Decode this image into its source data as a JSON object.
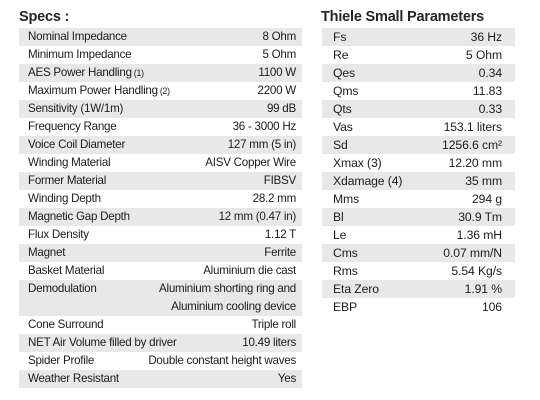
{
  "specs": {
    "heading": "Specs :",
    "rows": [
      {
        "label": "Nominal Impedance",
        "value": "8 Ohm"
      },
      {
        "label": "Minimum Impedance",
        "value": "5 Ohm"
      },
      {
        "label": "AES Power Handling",
        "sup": "(1)",
        "value": "1100 W"
      },
      {
        "label": "Maximum Power Handling",
        "sup": "(2)",
        "value": "2200 W"
      },
      {
        "label": "Sensitivity (1W/1m)",
        "value": "99 dB"
      },
      {
        "label": "Frequency Range",
        "value": "36 - 3000 Hz"
      },
      {
        "label": "Voice Coil Diameter",
        "value": "127 mm (5 in)"
      },
      {
        "label": "Winding Material",
        "value": "AISV Copper Wire"
      },
      {
        "label": "Former Material",
        "value": "FIBSV"
      },
      {
        "label": "Winding Depth",
        "value": "28.2 mm"
      },
      {
        "label": "Magnetic Gap Depth",
        "value": "12 mm (0.47 in)"
      },
      {
        "label": "Flux Density",
        "value": "1.12 T"
      },
      {
        "label": "Magnet",
        "value": "Ferrite"
      },
      {
        "label": "Basket Material",
        "value": "Aluminium die cast"
      },
      {
        "label": "Demodulation",
        "value": "Aluminium shorting ring and",
        "value2": "Aluminium cooling device"
      },
      {
        "label": "Cone Surround",
        "value": "Triple roll"
      },
      {
        "label": "NET Air Volume filled by driver",
        "value": "10.49 liters"
      },
      {
        "label": "Spider Profile",
        "value": "Double constant height waves"
      },
      {
        "label": "Weather Resistant",
        "value": "Yes"
      }
    ]
  },
  "thiele_small": {
    "heading": "Thiele Small Parameters",
    "rows": [
      {
        "label": "Fs",
        "value": "36 Hz"
      },
      {
        "label": "Re",
        "value": "5 Ohm"
      },
      {
        "label": "Qes",
        "value": "0.34"
      },
      {
        "label": "Qms",
        "value": "11.83"
      },
      {
        "label": "Qts",
        "value": "0.33"
      },
      {
        "label": "Vas",
        "value": "153.1 liters"
      },
      {
        "label": "Sd",
        "value": "1256.6 cm²"
      },
      {
        "label": "Xmax (3)",
        "value": "12.20 mm"
      },
      {
        "label": "Xdamage (4)",
        "value": "35 mm"
      },
      {
        "label": "Mms",
        "value": "294 g"
      },
      {
        "label": "Bl",
        "value": "30.9 Tm"
      },
      {
        "label": "Le",
        "value": "1.36 mH"
      },
      {
        "label": "Cms",
        "value": "0.07 mm/N"
      },
      {
        "label": "Rms",
        "value": "5.54 Kg/s"
      },
      {
        "label": "Eta Zero",
        "value": "1.91 %"
      },
      {
        "label": "EBP",
        "value": "106"
      }
    ]
  }
}
